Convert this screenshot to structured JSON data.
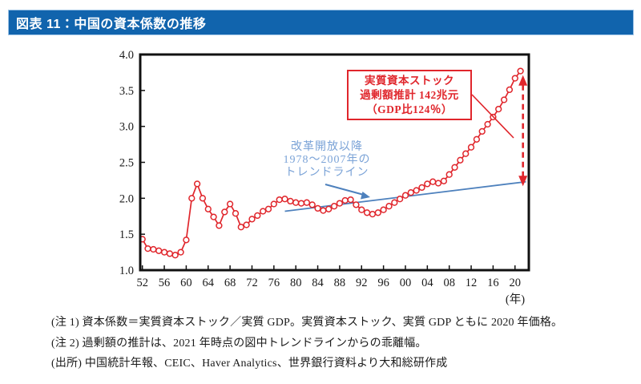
{
  "header": {
    "title": "図表 11：中国の資本係数の推移"
  },
  "chart_data": {
    "type": "line",
    "title": "中国の資本係数の推移",
    "xlabel": "(年)",
    "ylabel": "",
    "ylim": [
      1.0,
      4.0
    ],
    "ytick_labels": [
      "1.0",
      "1.5",
      "2.0",
      "2.5",
      "3.0",
      "3.5",
      "4.0"
    ],
    "xtick_years": [
      1952,
      1956,
      1960,
      1964,
      1968,
      1972,
      1976,
      1980,
      1984,
      1988,
      1992,
      1996,
      2000,
      2004,
      2008,
      2012,
      2016,
      2020
    ],
    "xtick_labels": [
      "52",
      "56",
      "60",
      "64",
      "68",
      "72",
      "76",
      "80",
      "84",
      "88",
      "92",
      "96",
      "00",
      "04",
      "08",
      "12",
      "16",
      "20"
    ],
    "x_axis_unit": "(年)",
    "grid": false,
    "legend_position": "none",
    "x": [
      1952,
      1953,
      1954,
      1955,
      1956,
      1957,
      1958,
      1959,
      1960,
      1961,
      1962,
      1963,
      1964,
      1965,
      1966,
      1967,
      1968,
      1969,
      1970,
      1971,
      1972,
      1973,
      1974,
      1975,
      1976,
      1977,
      1978,
      1979,
      1980,
      1981,
      1982,
      1983,
      1984,
      1985,
      1986,
      1987,
      1988,
      1989,
      1990,
      1991,
      1992,
      1993,
      1994,
      1995,
      1996,
      1997,
      1998,
      1999,
      2000,
      2001,
      2002,
      2003,
      2004,
      2005,
      2006,
      2007,
      2008,
      2009,
      2010,
      2011,
      2012,
      2013,
      2014,
      2015,
      2016,
      2017,
      2018,
      2019,
      2020,
      2021
    ],
    "series": [
      {
        "name": "資本係数（実質資本ストック／実質GDP）",
        "color": "#e0262c",
        "marker": "open-circle",
        "values": [
          1.43,
          1.3,
          1.29,
          1.27,
          1.25,
          1.23,
          1.21,
          1.25,
          1.42,
          2.0,
          2.2,
          2.0,
          1.85,
          1.74,
          1.62,
          1.81,
          1.92,
          1.79,
          1.6,
          1.63,
          1.71,
          1.76,
          1.82,
          1.85,
          1.92,
          1.98,
          1.99,
          1.96,
          1.94,
          1.93,
          1.94,
          1.91,
          1.86,
          1.83,
          1.85,
          1.89,
          1.93,
          1.97,
          1.98,
          1.91,
          1.84,
          1.8,
          1.78,
          1.8,
          1.84,
          1.89,
          1.94,
          1.99,
          2.04,
          2.08,
          2.11,
          2.15,
          2.2,
          2.23,
          2.21,
          2.24,
          2.33,
          2.43,
          2.53,
          2.62,
          2.71,
          2.82,
          2.93,
          3.03,
          3.13,
          3.24,
          3.37,
          3.51,
          3.67,
          3.77
        ]
      }
    ],
    "trendline": {
      "name": "改革開放以降1978～2007年のトレンドライン",
      "color": "#4e81bd",
      "from": {
        "x": 1978,
        "y": 1.82
      },
      "to": {
        "x": 2022,
        "y": 2.23
      }
    },
    "gap_arrow": {
      "description": "2021年時点のトレンドラインからの乖離幅",
      "year": 2021.45,
      "value_bottom": 2.19,
      "value_top": 3.69,
      "color": "#e0262c",
      "style": "dashed-double-arrow"
    }
  },
  "annotations": {
    "excess_box": {
      "line1": "実質資本ストック",
      "line2": "過剰額推計 142兆元",
      "line3": "（GDP比124％）",
      "color": "#e0262c"
    },
    "trend_label": {
      "line1": "改革開放以降",
      "line2": "1978～2007年の",
      "line3": "トレンドライン",
      "color": "#7ba3d7"
    }
  },
  "notes": {
    "note1": "(注 1) 資本係数＝実質資本ストック／実質 GDP。実質資本ストック、実質 GDP ともに 2020 年価格。",
    "note2": "(注 2) 過剰額の推計は、2021 年時点の図中トレンドラインからの乖離幅。",
    "source": "(出所) 中国統計年報、CEIC、Haver Analytics、世界銀行資料より大和総研作成"
  },
  "colors": {
    "header_bg": "#1164ad",
    "header_text": "#ffffff",
    "series_red": "#e0262c",
    "trend_blue": "#4e81bd",
    "label_blue": "#7ba3d7",
    "axis_black": "#111111"
  }
}
